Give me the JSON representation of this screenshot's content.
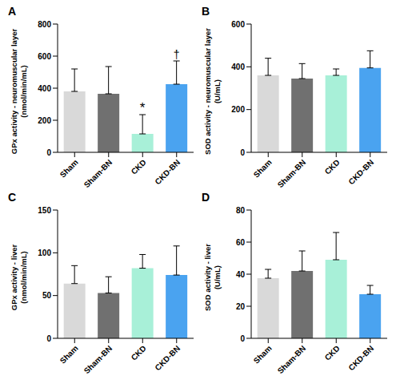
{
  "chart_data": [
    {
      "type": "bar",
      "panel_label": "A",
      "y_label": [
        "GPx activity - neuromuscular layer",
        "(nmol/min/mL)"
      ],
      "categories": [
        "Sham",
        "Sham-BN",
        "CKD",
        "CKD-BN"
      ],
      "values": [
        380,
        365,
        115,
        425
      ],
      "errors": [
        140,
        170,
        120,
        145
      ],
      "colors": [
        "#d9d9d9",
        "#707070",
        "#a8f0d8",
        "#4aa3f0"
      ],
      "ylim": [
        0,
        800
      ],
      "yticks": [
        0,
        200,
        400,
        600,
        800
      ],
      "annotations": [
        {
          "category": "CKD",
          "text": "*"
        },
        {
          "category": "CKD-BN",
          "text": "†"
        }
      ]
    },
    {
      "type": "bar",
      "panel_label": "B",
      "y_label": [
        "SOD activity - neuromuscular layer",
        "(U/mL)"
      ],
      "categories": [
        "Sham",
        "Sham-BN",
        "CKD",
        "CKD-BN"
      ],
      "values": [
        360,
        345,
        360,
        395
      ],
      "errors": [
        80,
        70,
        30,
        80
      ],
      "colors": [
        "#d9d9d9",
        "#707070",
        "#a8f0d8",
        "#4aa3f0"
      ],
      "ylim": [
        0,
        600
      ],
      "yticks": [
        0,
        200,
        400,
        600
      ]
    },
    {
      "type": "bar",
      "panel_label": "C",
      "y_label": [
        "GPx activity - liver",
        "(nmol/min/mL)"
      ],
      "categories": [
        "Sham",
        "Sham-BN",
        "CKD",
        "CKD-BN"
      ],
      "values": [
        64,
        53,
        82,
        74
      ],
      "errors": [
        21,
        19,
        16,
        34
      ],
      "colors": [
        "#d9d9d9",
        "#707070",
        "#a8f0d8",
        "#4aa3f0"
      ],
      "ylim": [
        0,
        150
      ],
      "yticks": [
        0,
        50,
        100,
        150
      ]
    },
    {
      "type": "bar",
      "panel_label": "D",
      "y_label": [
        "SOD activity - liver",
        "(U/mL)"
      ],
      "categories": [
        "Sham",
        "Sham-BN",
        "CKD",
        "CKD-BN"
      ],
      "values": [
        37.5,
        42,
        49,
        27.5
      ],
      "errors": [
        5.5,
        12.5,
        17,
        5.5
      ],
      "colors": [
        "#d9d9d9",
        "#707070",
        "#a8f0d8",
        "#4aa3f0"
      ],
      "ylim": [
        0,
        80
      ],
      "yticks": [
        0,
        20,
        40,
        60,
        80
      ]
    }
  ]
}
